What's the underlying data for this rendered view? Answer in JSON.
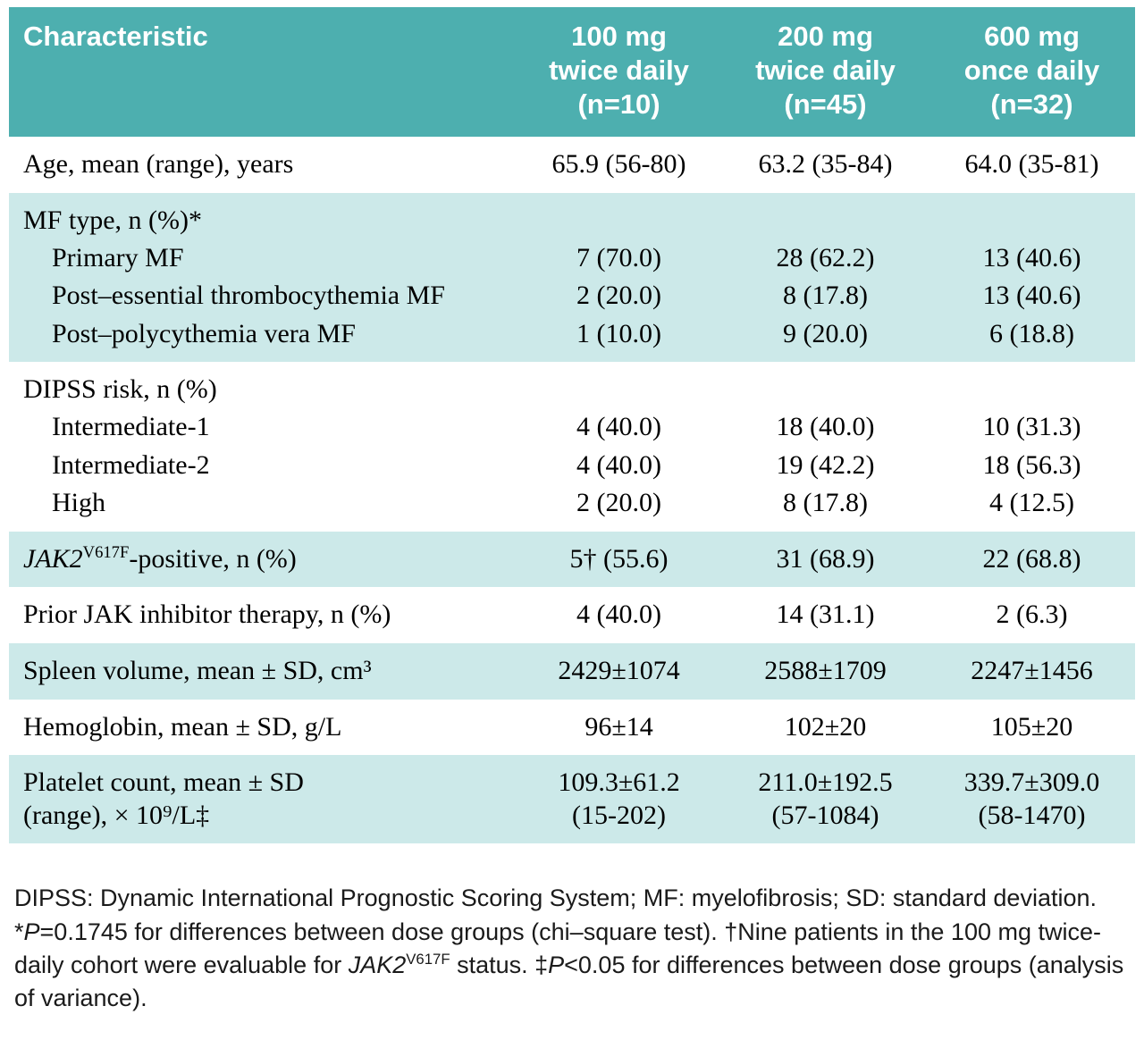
{
  "table": {
    "header": {
      "characteristic": "Characteristic",
      "doses": [
        "100 mg\ntwice daily\n(n=10)",
        "200 mg\ntwice daily\n(n=45)",
        "600 mg\nonce daily\n(n=32)"
      ]
    },
    "rows": [
      {
        "label": "Age, mean (range), years",
        "values": [
          "65.9 (56-80)",
          "63.2 (35-84)",
          "64.0 (35-81)"
        ]
      },
      {
        "label": "MF type, n (%)*"
      },
      {
        "label": "Primary MF",
        "values": [
          "7 (70.0)",
          "28 (62.2)",
          "13 (40.6)"
        ]
      },
      {
        "label": "Post–essential thrombocythemia MF",
        "values": [
          "2 (20.0)",
          "8 (17.8)",
          "13 (40.6)"
        ]
      },
      {
        "label": "Post–polycythemia vera MF",
        "values": [
          "1 (10.0)",
          "9 (20.0)",
          "6 (18.8)"
        ]
      },
      {
        "label": "DIPSS risk, n (%)"
      },
      {
        "label": "Intermediate-1",
        "values": [
          "4 (40.0)",
          "18 (40.0)",
          "10 (31.3)"
        ]
      },
      {
        "label": "Intermediate-2",
        "values": [
          "4 (40.0)",
          "19 (42.2)",
          "18 (56.3)"
        ]
      },
      {
        "label": "High",
        "values": [
          "2 (20.0)",
          "8 (17.8)",
          "4 (12.5)"
        ]
      },
      {
        "label_parts": [
          "JAK2",
          "V617F",
          "-positive, n (%)"
        ],
        "values": [
          "5† (55.6)",
          "31 (68.9)",
          "22 (68.8)"
        ]
      },
      {
        "label": "Prior JAK inhibitor therapy, n (%)",
        "values": [
          "4 (40.0)",
          "14 (31.1)",
          "2 (6.3)"
        ]
      },
      {
        "label": "Spleen volume, mean ± SD, cm³",
        "values": [
          "2429±1074",
          "2588±1709",
          "2247±1456"
        ]
      },
      {
        "label": "Hemoglobin, mean ± SD, g/L",
        "values": [
          "96±14",
          "102±20",
          "105±20"
        ]
      },
      {
        "label": "Platelet count, mean ± SD\n(range), × 10⁹/L‡",
        "values": [
          "109.3±61.2\n(15-202)",
          "211.0±192.5\n(57-1084)",
          "339.7±309.0\n(58-1470)"
        ]
      }
    ]
  },
  "footnote": {
    "segments": [
      "DIPSS: Dynamic International Prognostic Scoring System; MF: myelofibrosis; SD: standard deviation. *",
      "P",
      "=0.1745 for differences between dose groups (chi–square test). †Nine patients in the 100 mg twice-daily cohort were evaluable for ",
      "JAK2",
      "V617F",
      " status. ‡",
      "P",
      "<0.05 for differences between dose groups (analysis of variance)."
    ]
  },
  "colors": {
    "header_bg": "#4dafaf",
    "shade_bg": "#cce9e9",
    "header_text": "#ffffff",
    "body_text": "#000000"
  }
}
